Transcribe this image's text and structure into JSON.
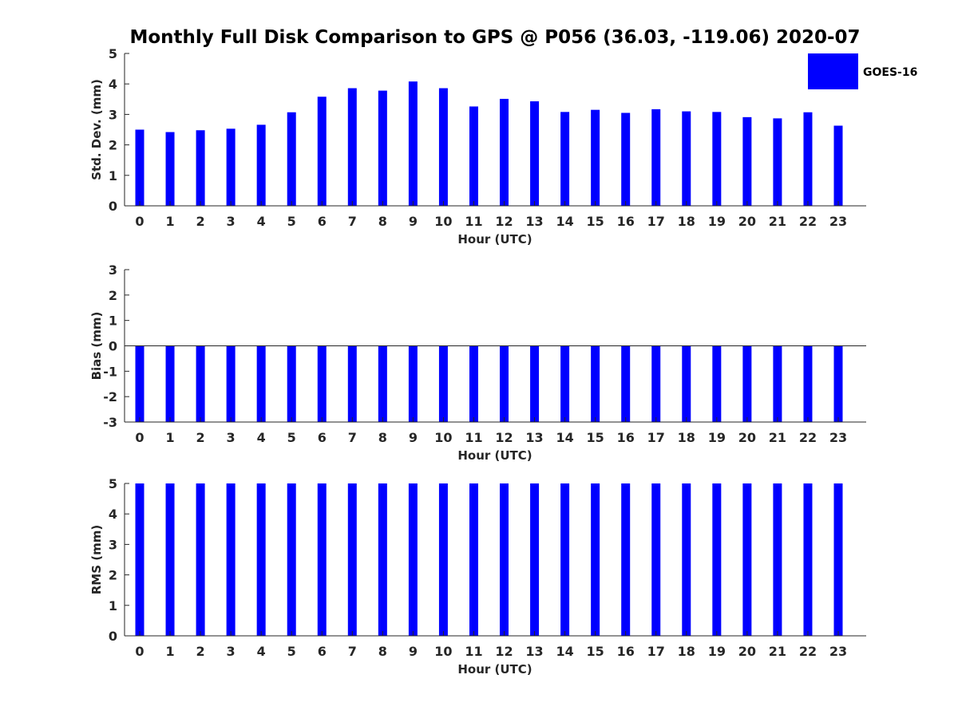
{
  "figure": {
    "title": "Monthly Full Disk Comparison to GPS @ P056 (36.03, -119.06) 2020-07"
  },
  "legend": {
    "label": "GOES-16",
    "color": "#0000ff",
    "position": "top-right"
  },
  "chart_data": [
    {
      "type": "bar",
      "name": "std-dev",
      "xlabel": "Hour (UTC)",
      "ylabel": "Std. Dev. (mm)",
      "categories": [
        "0",
        "1",
        "2",
        "3",
        "4",
        "5",
        "6",
        "7",
        "8",
        "9",
        "10",
        "11",
        "12",
        "13",
        "14",
        "15",
        "16",
        "17",
        "18",
        "19",
        "20",
        "21",
        "22",
        "23"
      ],
      "ylim": [
        0,
        5
      ],
      "yticks": [
        0,
        1,
        2,
        3,
        4,
        5
      ],
      "series": [
        {
          "name": "GOES-16",
          "color": "#0000ff",
          "values": [
            2.5,
            2.42,
            2.48,
            2.53,
            2.66,
            3.07,
            3.58,
            3.86,
            3.78,
            4.08,
            3.86,
            3.26,
            3.51,
            3.43,
            3.08,
            3.15,
            3.05,
            3.17,
            3.1,
            3.08,
            2.91,
            2.87,
            3.07,
            2.63
          ]
        }
      ],
      "grid": false
    },
    {
      "type": "bar",
      "name": "bias",
      "xlabel": "Hour (UTC)",
      "ylabel": "Bias (mm)",
      "categories": [
        "0",
        "1",
        "2",
        "3",
        "4",
        "5",
        "6",
        "7",
        "8",
        "9",
        "10",
        "11",
        "12",
        "13",
        "14",
        "15",
        "16",
        "17",
        "18",
        "19",
        "20",
        "21",
        "22",
        "23"
      ],
      "ylim": [
        -3,
        3
      ],
      "yticks": [
        -3,
        -2,
        -1,
        0,
        1,
        2,
        3
      ],
      "series": [
        {
          "name": "GOES-16",
          "color": "#0000ff",
          "values": [
            -3,
            -3,
            -3,
            -3,
            -3,
            -3,
            -3,
            -3,
            -3,
            -3,
            -3,
            -3,
            -3,
            -3,
            -3,
            -3,
            -3,
            -3,
            -3,
            -3,
            -3,
            -3,
            -3,
            -3
          ]
        }
      ],
      "grid": false
    },
    {
      "type": "bar",
      "name": "rms",
      "xlabel": "Hour (UTC)",
      "ylabel": "RMS (mm)",
      "categories": [
        "0",
        "1",
        "2",
        "3",
        "4",
        "5",
        "6",
        "7",
        "8",
        "9",
        "10",
        "11",
        "12",
        "13",
        "14",
        "15",
        "16",
        "17",
        "18",
        "19",
        "20",
        "21",
        "22",
        "23"
      ],
      "ylim": [
        0,
        5
      ],
      "yticks": [
        0,
        1,
        2,
        3,
        4,
        5
      ],
      "series": [
        {
          "name": "GOES-16",
          "color": "#0000ff",
          "values": [
            5,
            5,
            5,
            5,
            5,
            5,
            5,
            5,
            5,
            5,
            5,
            5,
            5,
            5,
            5,
            5,
            5,
            5,
            5,
            5,
            5,
            5,
            5,
            5
          ]
        }
      ],
      "grid": false
    }
  ]
}
